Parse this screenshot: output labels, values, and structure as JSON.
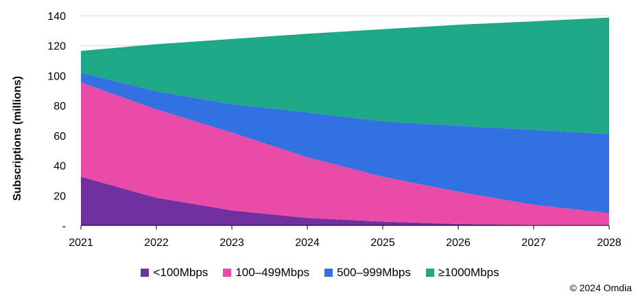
{
  "chart_data": {
    "type": "area",
    "stacked": true,
    "x": [
      "2021",
      "2022",
      "2023",
      "2024",
      "2025",
      "2026",
      "2027",
      "2028"
    ],
    "ylabel": "Subscriptions (millions)",
    "ylim": [
      0,
      140
    ],
    "yticks": [
      "-",
      "20",
      "40",
      "60",
      "80",
      "100",
      "120",
      "140"
    ],
    "grid": true,
    "legend_position": "bottom",
    "series": [
      {
        "name": "<100Mbps",
        "color": "#7030a0",
        "values": [
          32.5,
          18.5,
          10,
          5,
          2.5,
          1,
          0.3,
          0.1
        ]
      },
      {
        "name": "100–499Mbps",
        "color": "#e94ba9",
        "values": [
          63,
          59,
          52,
          40.5,
          30,
          21.5,
          13.5,
          8.1
        ]
      },
      {
        "name": "500–999Mbps",
        "color": "#3371e3",
        "values": [
          6.5,
          12,
          19,
          30,
          37,
          44,
          50,
          52.8
        ]
      },
      {
        "name": "≥1000Mbps",
        "color": "#1fa887",
        "values": [
          14.5,
          31.5,
          43.5,
          52.5,
          61.5,
          67.5,
          72.5,
          77.8
        ]
      }
    ]
  },
  "footer": {
    "copyright": "© 2024 Omdia"
  }
}
